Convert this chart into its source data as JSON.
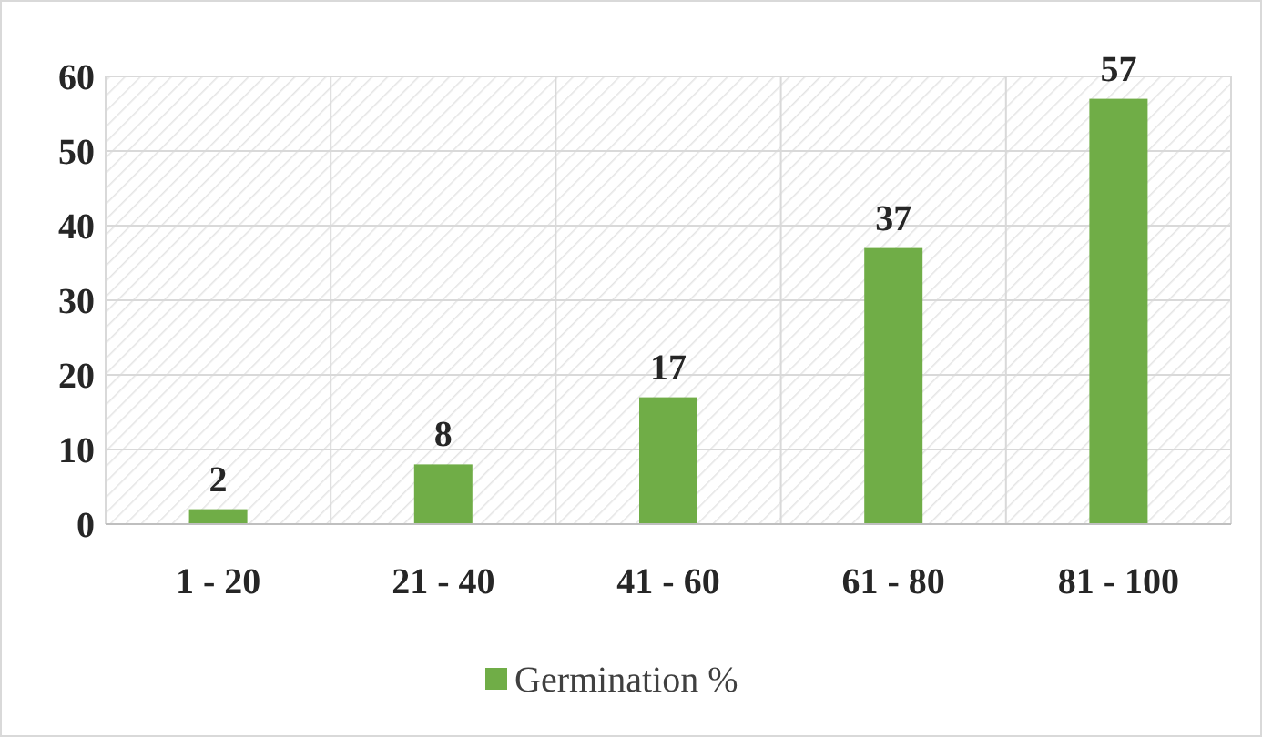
{
  "chart_data": {
    "type": "bar",
    "categories": [
      "1 - 20",
      "21 - 40",
      "41 - 60",
      "61 - 80",
      "81 - 100"
    ],
    "series": [
      {
        "name": "Germination %",
        "color": "#70ad47",
        "values": [
          2,
          8,
          17,
          37,
          57
        ]
      }
    ],
    "ylim": [
      0,
      60
    ],
    "yticks": [
      0,
      10,
      20,
      30,
      40,
      50,
      60
    ],
    "grid": true,
    "legend": "bottom",
    "data_labels": true
  }
}
